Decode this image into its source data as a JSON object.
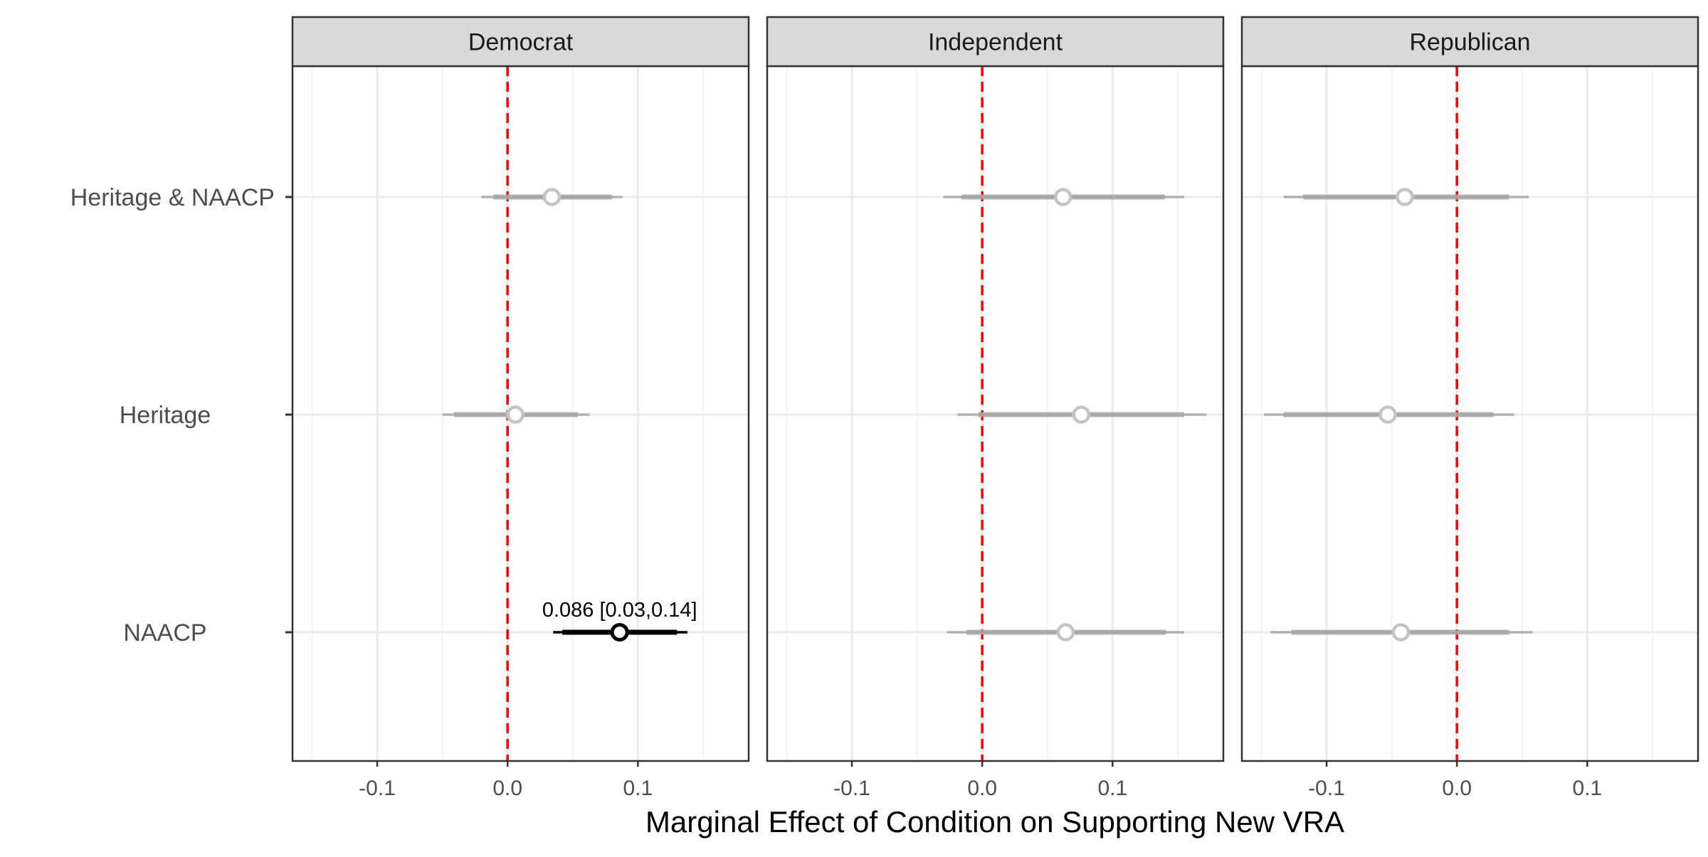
{
  "chart_data": {
    "type": "scatter",
    "subtype": "faceted coefficient plot (point + interval)",
    "xlabel": "Marginal Effect of Condition on Supporting New VRA",
    "ylabel": "",
    "xlim": [
      -0.165,
      0.185
    ],
    "x_ticks": [
      -0.1,
      0.0,
      0.1
    ],
    "x_tick_labels": [
      "-0.1",
      "0.0",
      "0.1"
    ],
    "reference_line": {
      "x": 0.0,
      "style": "dashed",
      "color": "#ff0000"
    },
    "categories": [
      "Heritage & NAACP",
      "Heritage",
      "NAACP"
    ],
    "facets": [
      {
        "name": "Democrat",
        "points": [
          {
            "category": "Heritage & NAACP",
            "estimate": 0.034,
            "inner": [
              -0.011,
              0.08
            ],
            "outer": [
              -0.02,
              0.088
            ],
            "significant": false
          },
          {
            "category": "Heritage",
            "estimate": 0.006,
            "inner": [
              -0.041,
              0.054
            ],
            "outer": [
              -0.05,
              0.063
            ],
            "significant": false
          },
          {
            "category": "NAACP",
            "estimate": 0.086,
            "inner": [
              0.042,
              0.13
            ],
            "outer": [
              0.035,
              0.138
            ],
            "significant": true,
            "label": "0.086 [0.03,0.14]"
          }
        ]
      },
      {
        "name": "Independent",
        "points": [
          {
            "category": "Heritage & NAACP",
            "estimate": 0.062,
            "inner": [
              -0.016,
              0.14
            ],
            "outer": [
              -0.03,
              0.155
            ],
            "significant": false
          },
          {
            "category": "Heritage",
            "estimate": 0.076,
            "inner": [
              -0.003,
              0.155
            ],
            "outer": [
              -0.019,
              0.172
            ],
            "significant": false
          },
          {
            "category": "NAACP",
            "estimate": 0.064,
            "inner": [
              -0.012,
              0.141
            ],
            "outer": [
              -0.027,
              0.155
            ],
            "significant": false
          }
        ]
      },
      {
        "name": "Republican",
        "points": [
          {
            "category": "Heritage & NAACP",
            "estimate": -0.04,
            "inner": [
              -0.118,
              0.04
            ],
            "outer": [
              -0.133,
              0.055
            ],
            "significant": false
          },
          {
            "category": "Heritage",
            "estimate": -0.053,
            "inner": [
              -0.133,
              0.028
            ],
            "outer": [
              -0.148,
              0.044
            ],
            "significant": false
          },
          {
            "category": "NAACP",
            "estimate": -0.043,
            "inner": [
              -0.127,
              0.04
            ],
            "outer": [
              -0.143,
              0.058
            ],
            "significant": false
          }
        ]
      }
    ]
  },
  "colors": {
    "significant": "#000000",
    "nonsignificant": "#a6a6a6",
    "reference_line": "#ff0000",
    "strip_fill": "#d9d9d9",
    "grid_major": "#ebebeb",
    "grid_minor": "#f4f4f4",
    "panel_border": "#333333"
  }
}
